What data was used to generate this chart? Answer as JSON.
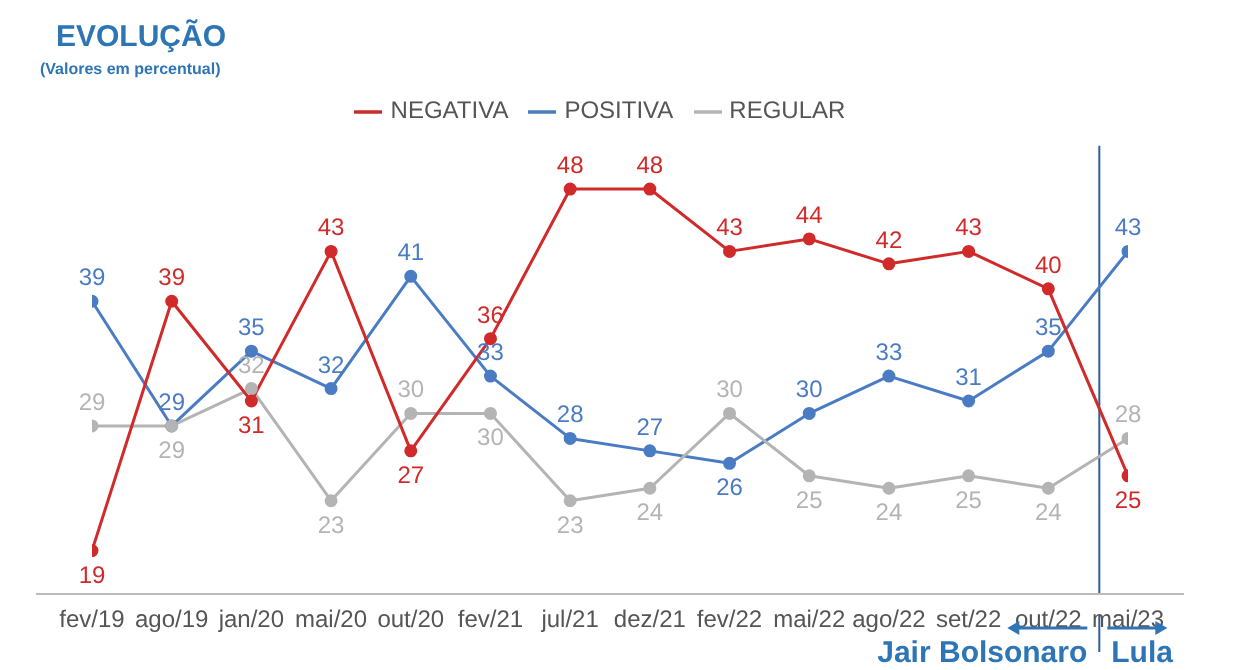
{
  "chart_data": {
    "type": "line",
    "title": "EVOLUÇÃO",
    "subtitle": "(Valores em percentual)",
    "categories": [
      "fev/19",
      "ago/19",
      "jan/20",
      "mai/20",
      "out/20",
      "fev/21",
      "jul/21",
      "dez/21",
      "fev/22",
      "mai/22",
      "ago/22",
      "set/22",
      "out/22",
      "mai/23"
    ],
    "series": [
      {
        "name": "POSITIVA",
        "color": "#4a7cc4",
        "values": [
          39,
          29,
          35,
          32,
          41,
          33,
          28,
          27,
          26,
          30,
          33,
          31,
          35,
          43
        ]
      },
      {
        "name": "REGULAR",
        "color": "#b4b4b4",
        "values": [
          29,
          29,
          32,
          23,
          30,
          30,
          23,
          24,
          30,
          25,
          24,
          25,
          24,
          28
        ]
      },
      {
        "name": "NEGATIVA",
        "color": "#d02a2a",
        "values": [
          19,
          39,
          31,
          43,
          27,
          36,
          48,
          48,
          43,
          44,
          42,
          43,
          40,
          25
        ]
      }
    ],
    "annotations": [
      "Jair Bolsonaro",
      "Lula"
    ],
    "ref_lines": [
      {
        "axis": "x",
        "value": "mai/23",
        "color": "#2e5e9e"
      }
    ],
    "data_labels": true,
    "legend": "top",
    "marker": "circle",
    "line_style": "solid",
    "grid": false
  }
}
